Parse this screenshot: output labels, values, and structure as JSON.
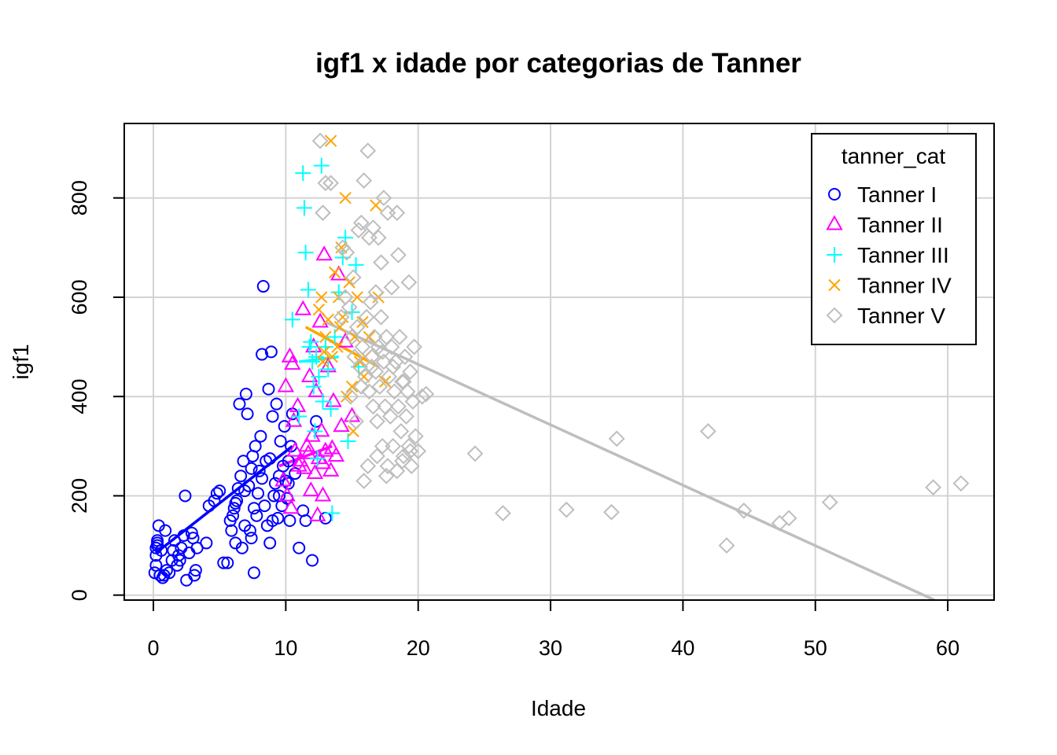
{
  "chart_data": {
    "type": "scatter",
    "title": "igf1 x idade por categorias de Tanner",
    "xlabel": "Idade",
    "ylabel": "igf1",
    "xlim": [
      -2.2,
      63.5
    ],
    "ylim": [
      -10,
      950
    ],
    "x_ticks": [
      0,
      10,
      20,
      30,
      40,
      50,
      60
    ],
    "y_ticks": [
      0,
      200,
      400,
      600,
      800
    ],
    "grid": true,
    "legend": {
      "title": "tanner_cat",
      "placement": "top-right"
    },
    "series": [
      {
        "name": "Tanner I",
        "color": "#0000ff",
        "marker": "circle",
        "fit": [
          [
            0.2,
            85
          ],
          [
            10.5,
            300
          ]
        ],
        "points": [
          [
            0.1,
            45
          ],
          [
            0.2,
            60
          ],
          [
            0.2,
            80
          ],
          [
            0.2,
            95
          ],
          [
            0.3,
            100
          ],
          [
            0.3,
            105
          ],
          [
            0.3,
            110
          ],
          [
            0.4,
            140
          ],
          [
            0.5,
            40
          ],
          [
            0.6,
            90
          ],
          [
            0.7,
            35
          ],
          [
            0.8,
            40
          ],
          [
            0.9,
            130
          ],
          [
            1.0,
            50
          ],
          [
            1.2,
            45
          ],
          [
            1.4,
            70
          ],
          [
            1.5,
            90
          ],
          [
            1.6,
            110
          ],
          [
            1.8,
            60
          ],
          [
            1.9,
            80
          ],
          [
            2.0,
            70
          ],
          [
            2.1,
            95
          ],
          [
            2.3,
            120
          ],
          [
            2.4,
            200
          ],
          [
            2.5,
            30
          ],
          [
            2.7,
            85
          ],
          [
            2.9,
            125
          ],
          [
            3.0,
            115
          ],
          [
            3.1,
            40
          ],
          [
            3.2,
            50
          ],
          [
            3.3,
            95
          ],
          [
            4.0,
            105
          ],
          [
            4.2,
            180
          ],
          [
            4.6,
            190
          ],
          [
            4.8,
            205
          ],
          [
            5.0,
            210
          ],
          [
            5.3,
            65
          ],
          [
            5.6,
            65
          ],
          [
            5.8,
            150
          ],
          [
            6.0,
            160
          ],
          [
            6.1,
            175
          ],
          [
            6.2,
            105
          ],
          [
            6.3,
            190
          ],
          [
            6.4,
            215
          ],
          [
            6.5,
            385
          ],
          [
            6.6,
            240
          ],
          [
            6.7,
            95
          ],
          [
            6.8,
            270
          ],
          [
            6.9,
            140
          ],
          [
            7.0,
            405
          ],
          [
            7.1,
            365
          ],
          [
            7.2,
            220
          ],
          [
            7.3,
            130
          ],
          [
            7.4,
            115
          ],
          [
            7.5,
            280
          ],
          [
            7.6,
            45
          ],
          [
            7.7,
            300
          ],
          [
            7.8,
            160
          ],
          [
            7.9,
            205
          ],
          [
            8.0,
            250
          ],
          [
            8.1,
            320
          ],
          [
            8.2,
            485
          ],
          [
            8.3,
            622
          ],
          [
            8.4,
            180
          ],
          [
            8.5,
            270
          ],
          [
            8.6,
            140
          ],
          [
            8.7,
            415
          ],
          [
            8.8,
            105
          ],
          [
            8.9,
            490
          ],
          [
            9.0,
            360
          ],
          [
            9.1,
            200
          ],
          [
            9.2,
            225
          ],
          [
            9.3,
            385
          ],
          [
            9.4,
            155
          ],
          [
            9.5,
            240
          ],
          [
            9.6,
            310
          ],
          [
            9.7,
            180
          ],
          [
            9.8,
            260
          ],
          [
            9.9,
            340
          ],
          [
            10.0,
            230
          ],
          [
            10.1,
            195
          ],
          [
            10.2,
            270
          ],
          [
            10.3,
            150
          ],
          [
            10.4,
            300
          ],
          [
            10.5,
            365
          ],
          [
            10.7,
            245
          ],
          [
            11.0,
            95
          ],
          [
            11.3,
            170
          ],
          [
            11.5,
            150
          ],
          [
            12.0,
            70
          ],
          [
            12.3,
            350
          ],
          [
            13.0,
            155
          ],
          [
            6.2,
            185
          ],
          [
            6.9,
            210
          ],
          [
            7.4,
            255
          ],
          [
            8.2,
            235
          ],
          [
            8.8,
            275
          ],
          [
            9.5,
            200
          ],
          [
            10.2,
            225
          ],
          [
            5.9,
            130
          ],
          [
            7.6,
            175
          ],
          [
            9.0,
            150
          ]
        ]
      },
      {
        "name": "Tanner II",
        "color": "#ff00ff",
        "marker": "triangle",
        "fit": [
          [
            9.5,
            260
          ],
          [
            13.5,
            300
          ]
        ],
        "points": [
          [
            9.8,
            230
          ],
          [
            10.0,
            420
          ],
          [
            10.1,
            200
          ],
          [
            10.3,
            480
          ],
          [
            10.4,
            175
          ],
          [
            10.5,
            465
          ],
          [
            10.6,
            350
          ],
          [
            10.7,
            290
          ],
          [
            10.9,
            380
          ],
          [
            11.1,
            270
          ],
          [
            11.3,
            575
          ],
          [
            11.4,
            255
          ],
          [
            11.6,
            300
          ],
          [
            11.8,
            440
          ],
          [
            11.9,
            210
          ],
          [
            12.0,
            320
          ],
          [
            12.1,
            500
          ],
          [
            12.2,
            245
          ],
          [
            12.3,
            410
          ],
          [
            12.4,
            160
          ],
          [
            12.5,
            275
          ],
          [
            12.6,
            550
          ],
          [
            12.7,
            330
          ],
          [
            12.8,
            200
          ],
          [
            12.9,
            685
          ],
          [
            13.0,
            290
          ],
          [
            13.2,
            460
          ],
          [
            13.4,
            250
          ],
          [
            13.6,
            390
          ],
          [
            13.8,
            280
          ],
          [
            14.0,
            645
          ],
          [
            14.2,
            340
          ],
          [
            14.5,
            510
          ],
          [
            15.0,
            360
          ],
          [
            11.0,
            260
          ],
          [
            11.7,
            285
          ],
          [
            12.8,
            265
          ],
          [
            13.5,
            295
          ]
        ]
      },
      {
        "name": "Tanner III",
        "color": "#00ffff",
        "marker": "plus",
        "fit": [
          [
            11.0,
            470
          ],
          [
            14.0,
            480
          ]
        ],
        "points": [
          [
            10.5,
            555
          ],
          [
            11.0,
            360
          ],
          [
            11.3,
            850
          ],
          [
            11.4,
            780
          ],
          [
            11.5,
            690
          ],
          [
            11.7,
            615
          ],
          [
            11.8,
            500
          ],
          [
            12.0,
            470
          ],
          [
            12.1,
            420
          ],
          [
            12.2,
            330
          ],
          [
            12.3,
            480
          ],
          [
            12.5,
            440
          ],
          [
            12.7,
            865
          ],
          [
            12.8,
            390
          ],
          [
            13.0,
            500
          ],
          [
            13.2,
            455
          ],
          [
            13.4,
            375
          ],
          [
            13.5,
            165
          ],
          [
            13.7,
            520
          ],
          [
            14.0,
            610
          ],
          [
            14.3,
            680
          ],
          [
            14.5,
            720
          ],
          [
            14.7,
            310
          ],
          [
            15.0,
            570
          ],
          [
            15.3,
            665
          ],
          [
            15.5,
            460
          ],
          [
            12.4,
            275
          ],
          [
            11.9,
            510
          ]
        ]
      },
      {
        "name": "Tanner IV",
        "color": "#ffa500",
        "marker": "cross",
        "fit": [
          [
            11.5,
            540
          ],
          [
            17.0,
            460
          ]
        ],
        "points": [
          [
            12.5,
            575
          ],
          [
            12.7,
            600
          ],
          [
            12.8,
            470
          ],
          [
            13.0,
            520
          ],
          [
            13.2,
            555
          ],
          [
            13.4,
            915
          ],
          [
            13.5,
            480
          ],
          [
            13.7,
            650
          ],
          [
            13.9,
            500
          ],
          [
            14.0,
            600
          ],
          [
            14.2,
            700
          ],
          [
            14.3,
            560
          ],
          [
            14.5,
            800
          ],
          [
            14.6,
            400
          ],
          [
            14.8,
            630
          ],
          [
            15.0,
            420
          ],
          [
            15.2,
            520
          ],
          [
            15.4,
            600
          ],
          [
            15.6,
            470
          ],
          [
            15.8,
            550
          ],
          [
            16.0,
            480
          ],
          [
            16.3,
            520
          ],
          [
            16.8,
            785
          ],
          [
            17.0,
            600
          ],
          [
            17.5,
            430
          ],
          [
            12.9,
            490
          ],
          [
            14.1,
            540
          ],
          [
            15.1,
            330
          ],
          [
            15.9,
            440
          ]
        ]
      },
      {
        "name": "Tanner V",
        "color": "#bebebe",
        "marker": "diamond",
        "fit": [
          [
            13.0,
            550
          ],
          [
            59.0,
            -10
          ]
        ],
        "points": [
          [
            12.6,
            915
          ],
          [
            12.8,
            770
          ],
          [
            13.0,
            830
          ],
          [
            13.4,
            830
          ],
          [
            14.3,
            700
          ],
          [
            14.6,
            690
          ],
          [
            15.1,
            640
          ],
          [
            15.5,
            735
          ],
          [
            15.7,
            750
          ],
          [
            15.9,
            835
          ],
          [
            16.2,
            895
          ],
          [
            16.3,
            720
          ],
          [
            16.6,
            740
          ],
          [
            17.0,
            720
          ],
          [
            17.2,
            670
          ],
          [
            17.4,
            800
          ],
          [
            17.7,
            770
          ],
          [
            18.0,
            620
          ],
          [
            18.4,
            770
          ],
          [
            18.5,
            685
          ],
          [
            19.3,
            630
          ],
          [
            14.2,
            560
          ],
          [
            14.5,
            600
          ],
          [
            14.8,
            580
          ],
          [
            15.0,
            520
          ],
          [
            15.2,
            480
          ],
          [
            15.4,
            540
          ],
          [
            15.6,
            460
          ],
          [
            15.8,
            500
          ],
          [
            16.0,
            440
          ],
          [
            16.1,
            560
          ],
          [
            16.3,
            410
          ],
          [
            16.4,
            590
          ],
          [
            16.5,
            480
          ],
          [
            16.6,
            380
          ],
          [
            16.7,
            520
          ],
          [
            16.8,
            450
          ],
          [
            16.9,
            350
          ],
          [
            17.0,
            500
          ],
          [
            17.1,
            420
          ],
          [
            17.2,
            560
          ],
          [
            17.3,
            300
          ],
          [
            17.4,
            470
          ],
          [
            17.5,
            380
          ],
          [
            17.6,
            520
          ],
          [
            17.7,
            260
          ],
          [
            17.8,
            440
          ],
          [
            17.9,
            360
          ],
          [
            18.0,
            500
          ],
          [
            18.1,
            300
          ],
          [
            18.2,
            410
          ],
          [
            18.3,
            470
          ],
          [
            18.4,
            250
          ],
          [
            18.5,
            380
          ],
          [
            18.6,
            520
          ],
          [
            18.7,
            330
          ],
          [
            18.8,
            430
          ],
          [
            18.9,
            280
          ],
          [
            19.0,
            480
          ],
          [
            19.1,
            360
          ],
          [
            19.2,
            410
          ],
          [
            19.3,
            300
          ],
          [
            19.4,
            450
          ],
          [
            19.5,
            260
          ],
          [
            19.6,
            390
          ],
          [
            19.7,
            500
          ],
          [
            19.8,
            320
          ],
          [
            20.0,
            290
          ],
          [
            20.3,
            400
          ],
          [
            20.6,
            405
          ],
          [
            15.9,
            230
          ],
          [
            16.2,
            260
          ],
          [
            16.9,
            280
          ],
          [
            17.6,
            240
          ],
          [
            18.8,
            270
          ],
          [
            19.4,
            290
          ],
          [
            14.9,
            400
          ],
          [
            15.7,
            420
          ],
          [
            16.5,
            460
          ],
          [
            17.3,
            490
          ],
          [
            18.1,
            460
          ],
          [
            18.9,
            430
          ],
          [
            15.3,
            350
          ],
          [
            16.8,
            610
          ],
          [
            24.3,
            285
          ],
          [
            26.4,
            165
          ],
          [
            31.2,
            172
          ],
          [
            34.6,
            167
          ],
          [
            35.0,
            315
          ],
          [
            41.9,
            330
          ],
          [
            43.3,
            100
          ],
          [
            44.6,
            170
          ],
          [
            47.3,
            145
          ],
          [
            48.0,
            155
          ],
          [
            51.1,
            187
          ],
          [
            58.9,
            217
          ],
          [
            61.0,
            225
          ]
        ]
      }
    ]
  }
}
